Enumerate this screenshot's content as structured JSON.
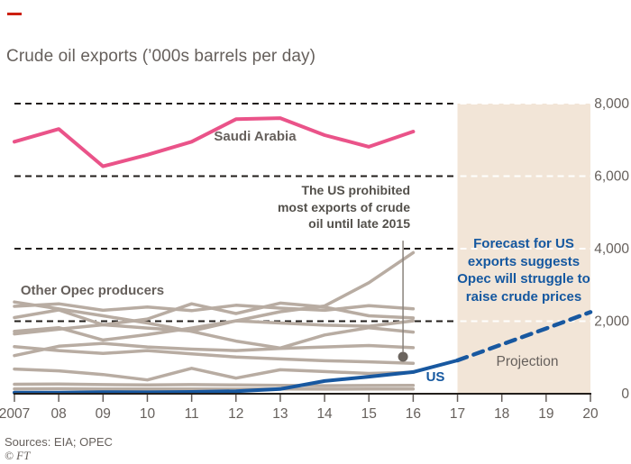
{
  "title": "Crude oil exports (’000s barrels per day)",
  "labels": {
    "saudi_arabia": "Saudi Arabia",
    "other_opec": "Other Opec producers",
    "annotation": "The US prohibited\nmost exports of crude\noil until late 2015",
    "forecast": "Forecast for US\nexports suggests\nOpec will struggle to\nraise crude prices",
    "projection": "Projection",
    "us": "US"
  },
  "footer": {
    "sources": "Sources: EIA; OPEC",
    "credit": "© FT"
  },
  "chart_data": {
    "type": "line",
    "title": "Crude oil exports ('000s barrels per day)",
    "xlabel": "",
    "ylabel": "'000s barrels per day",
    "xlim": [
      2007,
      2020
    ],
    "ylim": [
      0,
      8000
    ],
    "grid": "dashed-horizontal",
    "legend_position": "inline-labels",
    "xtick_years": [
      2007,
      2008,
      2009,
      2010,
      2011,
      2012,
      2013,
      2014,
      2015,
      2016,
      2017,
      2018,
      2019,
      2020
    ],
    "xtick_labels": [
      "2007",
      "08",
      "09",
      "10",
      "11",
      "12",
      "13",
      "14",
      "15",
      "16",
      "17",
      "18",
      "19",
      "20"
    ],
    "yticks": [
      0,
      2000,
      4000,
      6000,
      8000
    ],
    "ytick_labels": [
      "0",
      "2,000",
      "4,000",
      "6,000",
      "8,000"
    ],
    "projection": {
      "start_year": 2017,
      "end_year": 2020
    },
    "colors": {
      "band": "#f2e5d7",
      "grid": "#221e1b",
      "grid_on_band": "#ffffff",
      "axis": "#221e1b",
      "tick": "#66605c",
      "label": "#66605c",
      "saudi": "#ea5389",
      "us": "#1858a0",
      "opec_gray": "#b8aca2",
      "marker": "#6b645e"
    },
    "annotation_marker": {
      "year": 2015.77,
      "top_value": 4220,
      "circle_value": 1020,
      "radius": 5.5
    },
    "series": [
      {
        "id": "opec-line-1",
        "name": "Other Opec producer 1",
        "color": "#b8aca2",
        "width": 3.5,
        "years": [
          2007,
          2008,
          2009,
          2010,
          2011,
          2012,
          2013,
          2014,
          2015,
          2016
        ],
        "values": [
          2410,
          2480,
          2300,
          2390,
          2290,
          2440,
          2360,
          2300,
          2430,
          2340
        ]
      },
      {
        "id": "opec-line-2",
        "name": "Other Opec producer 2",
        "color": "#b8aca2",
        "width": 3.5,
        "years": [
          2007,
          2008,
          2009,
          2010,
          2011,
          2012,
          2013,
          2014,
          2015,
          2016
        ],
        "values": [
          2100,
          2310,
          1900,
          2060,
          2480,
          2210,
          2500,
          2390,
          2150,
          2090
        ]
      },
      {
        "id": "opec-line-3",
        "name": "Other Opec producer 3",
        "color": "#b8aca2",
        "width": 3.5,
        "years": [
          2007,
          2008,
          2009,
          2010,
          2011,
          2012,
          2013,
          2014,
          2015,
          2016
        ],
        "values": [
          2530,
          2340,
          2150,
          1950,
          1720,
          1450,
          1260,
          1620,
          1820,
          1700
        ]
      },
      {
        "id": "opec-line-4",
        "name": "Other Opec producer 4",
        "color": "#b8aca2",
        "width": 3.5,
        "years": [
          2007,
          2008,
          2009,
          2010,
          2011,
          2012,
          2013,
          2014,
          2015,
          2016
        ],
        "values": [
          1650,
          1780,
          1900,
          1810,
          1730,
          2010,
          2260,
          2420,
          3060,
          3890
        ]
      },
      {
        "id": "opec-line-5",
        "name": "Other Opec producer 5",
        "color": "#b8aca2",
        "width": 3.5,
        "years": [
          2007,
          2008,
          2009,
          2010,
          2011,
          2012,
          2013,
          2014,
          2015,
          2016
        ],
        "values": [
          1720,
          1820,
          1480,
          1630,
          1810,
          2010,
          1950,
          1890,
          1860,
          2010
        ]
      },
      {
        "id": "opec-line-6",
        "name": "Other Opec producer 6",
        "color": "#b8aca2",
        "width": 3.5,
        "years": [
          2007,
          2008,
          2009,
          2010,
          2011,
          2012,
          2013,
          2014,
          2015,
          2016
        ],
        "values": [
          1300,
          1190,
          1110,
          1190,
          1100,
          1010,
          960,
          910,
          880,
          840
        ]
      },
      {
        "id": "opec-line-7",
        "name": "Other Opec producer 7",
        "color": "#b8aca2",
        "width": 3.5,
        "years": [
          2007,
          2008,
          2009,
          2010,
          2011,
          2012,
          2013,
          2014,
          2015,
          2016
        ],
        "values": [
          1050,
          1310,
          1390,
          1290,
          1230,
          1190,
          1250,
          1290,
          1330,
          1270
        ]
      },
      {
        "id": "opec-line-8",
        "name": "Other Opec producer 8",
        "color": "#b8aca2",
        "width": 3.5,
        "years": [
          2007,
          2008,
          2009,
          2010,
          2011,
          2012,
          2013,
          2014,
          2015,
          2016
        ],
        "values": [
          680,
          630,
          530,
          380,
          700,
          430,
          660,
          610,
          560,
          590
        ]
      },
      {
        "id": "opec-line-9",
        "name": "Other Opec producer 9",
        "color": "#b8aca2",
        "width": 3.5,
        "years": [
          2007,
          2008,
          2009,
          2010,
          2011,
          2012,
          2013,
          2014,
          2015,
          2016
        ],
        "values": [
          260,
          265,
          250,
          240,
          250,
          240,
          230,
          220,
          225,
          230
        ]
      },
      {
        "id": "opec-line-10",
        "name": "Other Opec producer 10",
        "color": "#b8aca2",
        "width": 3.5,
        "years": [
          2007,
          2008,
          2009,
          2010,
          2011,
          2012,
          2013,
          2014,
          2015,
          2016
        ],
        "values": [
          135,
          140,
          132,
          128,
          132,
          130,
          128,
          126,
          130,
          132
        ]
      },
      {
        "id": "saudi-arabia-line",
        "name": "Saudi Arabia",
        "color": "#ea5389",
        "width": 4,
        "years": [
          2007,
          2008,
          2009,
          2010,
          2011,
          2012,
          2013,
          2014,
          2015,
          2016
        ],
        "values": [
          6950,
          7300,
          6270,
          6590,
          6950,
          7570,
          7600,
          7130,
          6810,
          7230
        ]
      },
      {
        "id": "us-line",
        "name": "US",
        "color": "#1858a0",
        "width": 4,
        "years": [
          2007,
          2008,
          2009,
          2010,
          2011,
          2012,
          2013,
          2014,
          2015,
          2016,
          2017
        ],
        "values": [
          30,
          30,
          45,
          40,
          50,
          70,
          130,
          350,
          470,
          600,
          920
        ]
      },
      {
        "id": "us-projection-line",
        "name": "US projection",
        "color": "#1858a0",
        "width": 4.5,
        "dash": "11 8",
        "is_projection": true,
        "years": [
          2017,
          2018,
          2019,
          2020
        ],
        "values": [
          920,
          1360,
          1800,
          2250
        ]
      }
    ]
  }
}
